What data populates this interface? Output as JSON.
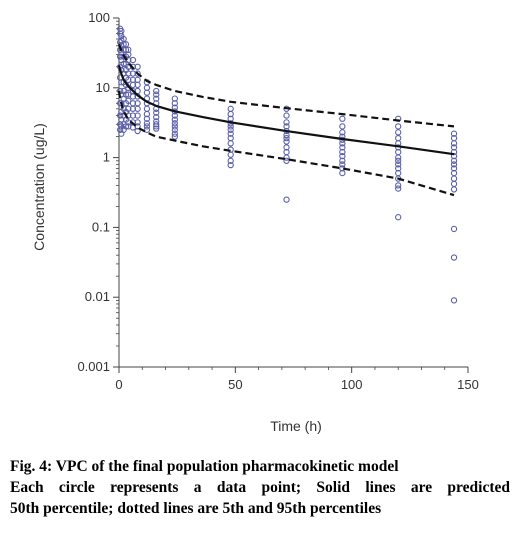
{
  "chart_data": {
    "type": "scatter",
    "xlabel": "Time (h)",
    "ylabel": "Concentration (ug/L)",
    "x_scale": "linear",
    "y_scale": "log",
    "xlim": [
      0,
      150
    ],
    "ylim": [
      0.001,
      100
    ],
    "x_ticks": [
      "0",
      "50",
      "100",
      "150"
    ],
    "y_ticks": [
      "0.001",
      "0.01",
      "0.1",
      "1",
      "10",
      "100"
    ],
    "grid": false,
    "point_color": "#5a5fa8",
    "line_color": "#111111",
    "observed": {
      "x": [
        0.5,
        0.5,
        0.5,
        0.5,
        0.5,
        0.5,
        0.5,
        0.5,
        0.5,
        0.5,
        0.5,
        0.5,
        1,
        1,
        1,
        1,
        1,
        1,
        1,
        1,
        1,
        1,
        1,
        1,
        1,
        1,
        2,
        2,
        2,
        2,
        2,
        2,
        2,
        2,
        2,
        2,
        2,
        2,
        2,
        3,
        3,
        3,
        3,
        3,
        3,
        3,
        3,
        3,
        3,
        3,
        3,
        4,
        4,
        4,
        4,
        4,
        4,
        4,
        4,
        4,
        4,
        4,
        4,
        4,
        6,
        6,
        6,
        6,
        6,
        6,
        6,
        6,
        6,
        6,
        6,
        6,
        8,
        8,
        8,
        8,
        8,
        8,
        8,
        8,
        8,
        8,
        8,
        8,
        12,
        12,
        12,
        12,
        12,
        12,
        12,
        12,
        12,
        12,
        12,
        16,
        16,
        16,
        16,
        16,
        16,
        16,
        16,
        16,
        16,
        16,
        24,
        24,
        24,
        24,
        24,
        24,
        24,
        24,
        24,
        24,
        24,
        48,
        48,
        48,
        48,
        48,
        48,
        48,
        48,
        48,
        48,
        48,
        48,
        48,
        72,
        72,
        72,
        72,
        72,
        72,
        72,
        72,
        72,
        72,
        72,
        72,
        72,
        96,
        96,
        96,
        96,
        96,
        96,
        96,
        96,
        96,
        96,
        96,
        96,
        96,
        120,
        120,
        120,
        120,
        120,
        120,
        120,
        120,
        120,
        120,
        120,
        120,
        120,
        120,
        120,
        120,
        144,
        144,
        144,
        144,
        144,
        144,
        144,
        144,
        144,
        144,
        144,
        144,
        144,
        144,
        144,
        144
      ],
      "y": [
        70,
        60,
        45,
        35,
        28,
        20,
        14,
        9,
        6,
        4,
        3,
        2.5,
        65,
        55,
        48,
        40,
        32,
        25,
        18,
        12,
        8,
        6,
        4.5,
        3.5,
        2.8,
        2.2,
        50,
        42,
        35,
        28,
        22,
        16,
        12,
        9,
        7,
        5,
        4,
        3,
        2.5,
        42,
        35,
        28,
        22,
        18,
        14,
        11,
        8,
        6,
        4.5,
        3.5,
        2.8,
        35,
        30,
        25,
        20,
        16,
        13,
        10,
        8,
        6.5,
        5,
        4,
        3.2,
        2.8,
        25,
        20,
        16,
        13,
        11,
        9,
        7.5,
        6,
        5,
        4,
        3.2,
        2.7,
        20,
        16,
        13,
        11,
        9,
        7.5,
        6,
        5,
        4,
        3.2,
        2.8,
        2.4,
        12,
        10,
        8.5,
        7,
        6,
        5,
        4.2,
        3.6,
        3.1,
        2.8,
        2.5,
        9,
        8,
        7,
        6,
        5,
        4.4,
        3.8,
        3.3,
        3,
        2.8,
        2.6,
        7,
        6,
        5.2,
        4.6,
        4,
        3.5,
        3.1,
        2.8,
        2.5,
        2.2,
        2,
        5,
        4.2,
        3.6,
        3.1,
        2.8,
        2.5,
        2.2,
        1.9,
        1.6,
        1.3,
        1.1,
        0.9,
        0.78,
        5,
        4,
        3.2,
        2.8,
        2.4,
        2.1,
        1.9,
        1.7,
        1.4,
        1.2,
        1,
        0.9,
        0.25,
        3.6,
        2.8,
        2.3,
        2,
        1.8,
        1.6,
        1.4,
        1.2,
        1.05,
        0.9,
        0.8,
        0.7,
        0.6,
        3.6,
        2.8,
        2.3,
        1.9,
        1.6,
        1.4,
        1.2,
        1,
        0.9,
        0.8,
        0.7,
        0.6,
        0.5,
        0.4,
        0.36,
        0.14,
        2.2,
        1.9,
        1.6,
        1.4,
        1.2,
        1.05,
        0.9,
        0.8,
        0.7,
        0.6,
        0.5,
        0.42,
        0.35,
        0.095,
        0.037,
        0.009
      ]
    },
    "percentile_lines": [
      {
        "name": "5th percentile",
        "style": "dashed",
        "x": [
          0,
          0.5,
          1,
          2,
          4,
          8,
          12,
          16,
          24,
          36,
          48,
          72,
          96,
          120,
          144
        ],
        "y": [
          9,
          7,
          6,
          4.6,
          3.5,
          2.7,
          2.3,
          2.0,
          1.75,
          1.45,
          1.25,
          0.95,
          0.7,
          0.5,
          0.29
        ]
      },
      {
        "name": "50th percentile",
        "style": "solid",
        "x": [
          0,
          0.5,
          1,
          2,
          4,
          8,
          12,
          16,
          24,
          36,
          48,
          72,
          96,
          120,
          144
        ],
        "y": [
          21,
          18,
          16,
          13,
          10.5,
          7.8,
          6.3,
          5.5,
          4.6,
          3.8,
          3.2,
          2.4,
          1.85,
          1.45,
          1.12
        ]
      },
      {
        "name": "95th percentile",
        "style": "dashed",
        "x": [
          0,
          0.5,
          1,
          2,
          4,
          8,
          12,
          16,
          24,
          36,
          48,
          72,
          96,
          120,
          144
        ],
        "y": [
          42,
          38,
          34,
          29,
          23,
          16,
          12.5,
          11,
          9,
          7.4,
          6.3,
          5.1,
          4.2,
          3.4,
          2.8
        ]
      }
    ]
  },
  "caption": {
    "title": "Fig. 4: VPC of the final population pharmacokinetic model",
    "body_line1": "Each circle represents a data point; Solid lines are predicted",
    "body_line2": "50th percentile; dotted lines are 5th and 95th percentiles"
  }
}
